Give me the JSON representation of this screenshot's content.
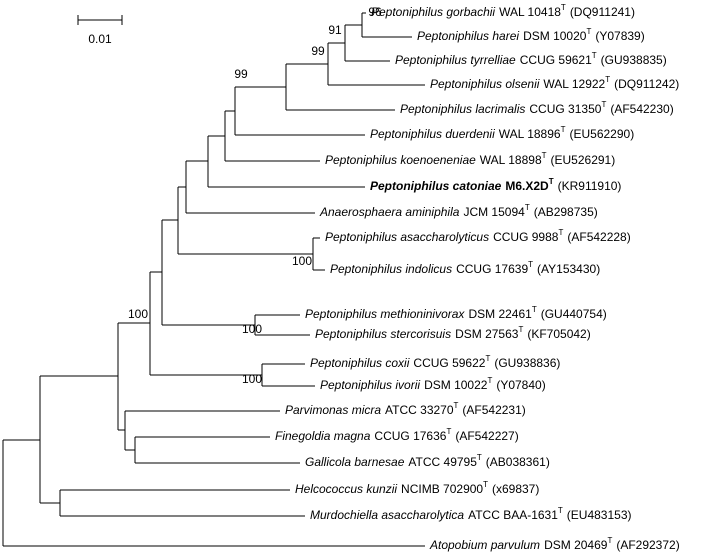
{
  "scale_bar": {
    "label": "0.01"
  },
  "leaves": [
    {
      "name": "Peptoniphilus gorbachii",
      "strain": "WAL 10418",
      "sup": "T",
      "accession": "(DQ911241)"
    },
    {
      "name": "Peptoniphilus harei",
      "strain": "DSM 10020",
      "sup": "T",
      "accession": "(Y07839)"
    },
    {
      "name": "Peptoniphilus tyrrelliae",
      "strain": "CCUG 59621",
      "sup": "T",
      "accession": "(GU938835)"
    },
    {
      "name": "Peptoniphilus olsenii",
      "strain": "WAL 12922",
      "sup": "T",
      "accession": "(DQ911242)"
    },
    {
      "name": "Peptoniphilus lacrimalis",
      "strain": "CCUG 31350",
      "sup": "T",
      "accession": "(AF542230)"
    },
    {
      "name": "Peptoniphilus duerdenii",
      "strain": "WAL 18896",
      "sup": "T",
      "accession": "(EU562290)"
    },
    {
      "name": "Peptoniphilus koenoeneniae",
      "strain": "WAL 18898",
      "sup": "T",
      "accession": "(EU526291)"
    },
    {
      "name": "Peptoniphilus catoniae",
      "strain": "M6.X2D",
      "sup": "T",
      "accession": "(KR911910)",
      "bold": true
    },
    {
      "name": "Anaerosphaera aminiphila",
      "strain": "JCM 15094",
      "sup": "T",
      "accession": "(AB298735)"
    },
    {
      "name": "Peptoniphilus asaccharolyticus",
      "strain": "CCUG 9988",
      "sup": "T",
      "accession": "(AF542228)"
    },
    {
      "name": "Peptoniphilus indolicus",
      "strain": "CCUG 17639",
      "sup": "T",
      "accession": "(AY153430)"
    },
    {
      "name": "Peptoniphilus methioninivorax",
      "strain": "DSM 22461",
      "sup": "T",
      "accession": "(GU440754)"
    },
    {
      "name": "Peptoniphilus stercorisuis",
      "strain": "DSM 27563",
      "sup": "T",
      "accession": "(KF705042)"
    },
    {
      "name": "Peptoniphilus coxii",
      "strain": "CCUG 59622",
      "sup": "T",
      "accession": "(GU938836)"
    },
    {
      "name": "Peptoniphilus ivorii",
      "strain": "DSM 10022",
      "sup": "T",
      "accession": "(Y07840)"
    },
    {
      "name": "Parvimonas micra",
      "strain": "ATCC 33270",
      "sup": "T",
      "accession": "(AF542231)"
    },
    {
      "name": "Finegoldia magna",
      "strain": "CCUG 17636",
      "sup": "T",
      "accession": "(AF542227)"
    },
    {
      "name": "Gallicola barnesae",
      "strain": "ATCC 49795",
      "sup": "T",
      "accession": "(AB038361)"
    },
    {
      "name": "Helcococcus kunzii",
      "strain": "NCIMB 702900",
      "sup": "T",
      "accession": "(x69837)"
    },
    {
      "name": "Murdochiella asaccharolytica",
      "strain": "ATCC BAA-1631",
      "sup": "T",
      "accession": "(EU483153)"
    },
    {
      "name": "Atopobium parvulum",
      "strain": "DSM 20469",
      "sup": "T",
      "accession": "(AF292372)"
    }
  ],
  "bootstrap": [
    "96",
    "91",
    "99",
    "99",
    "100",
    "100",
    "100",
    "100"
  ]
}
